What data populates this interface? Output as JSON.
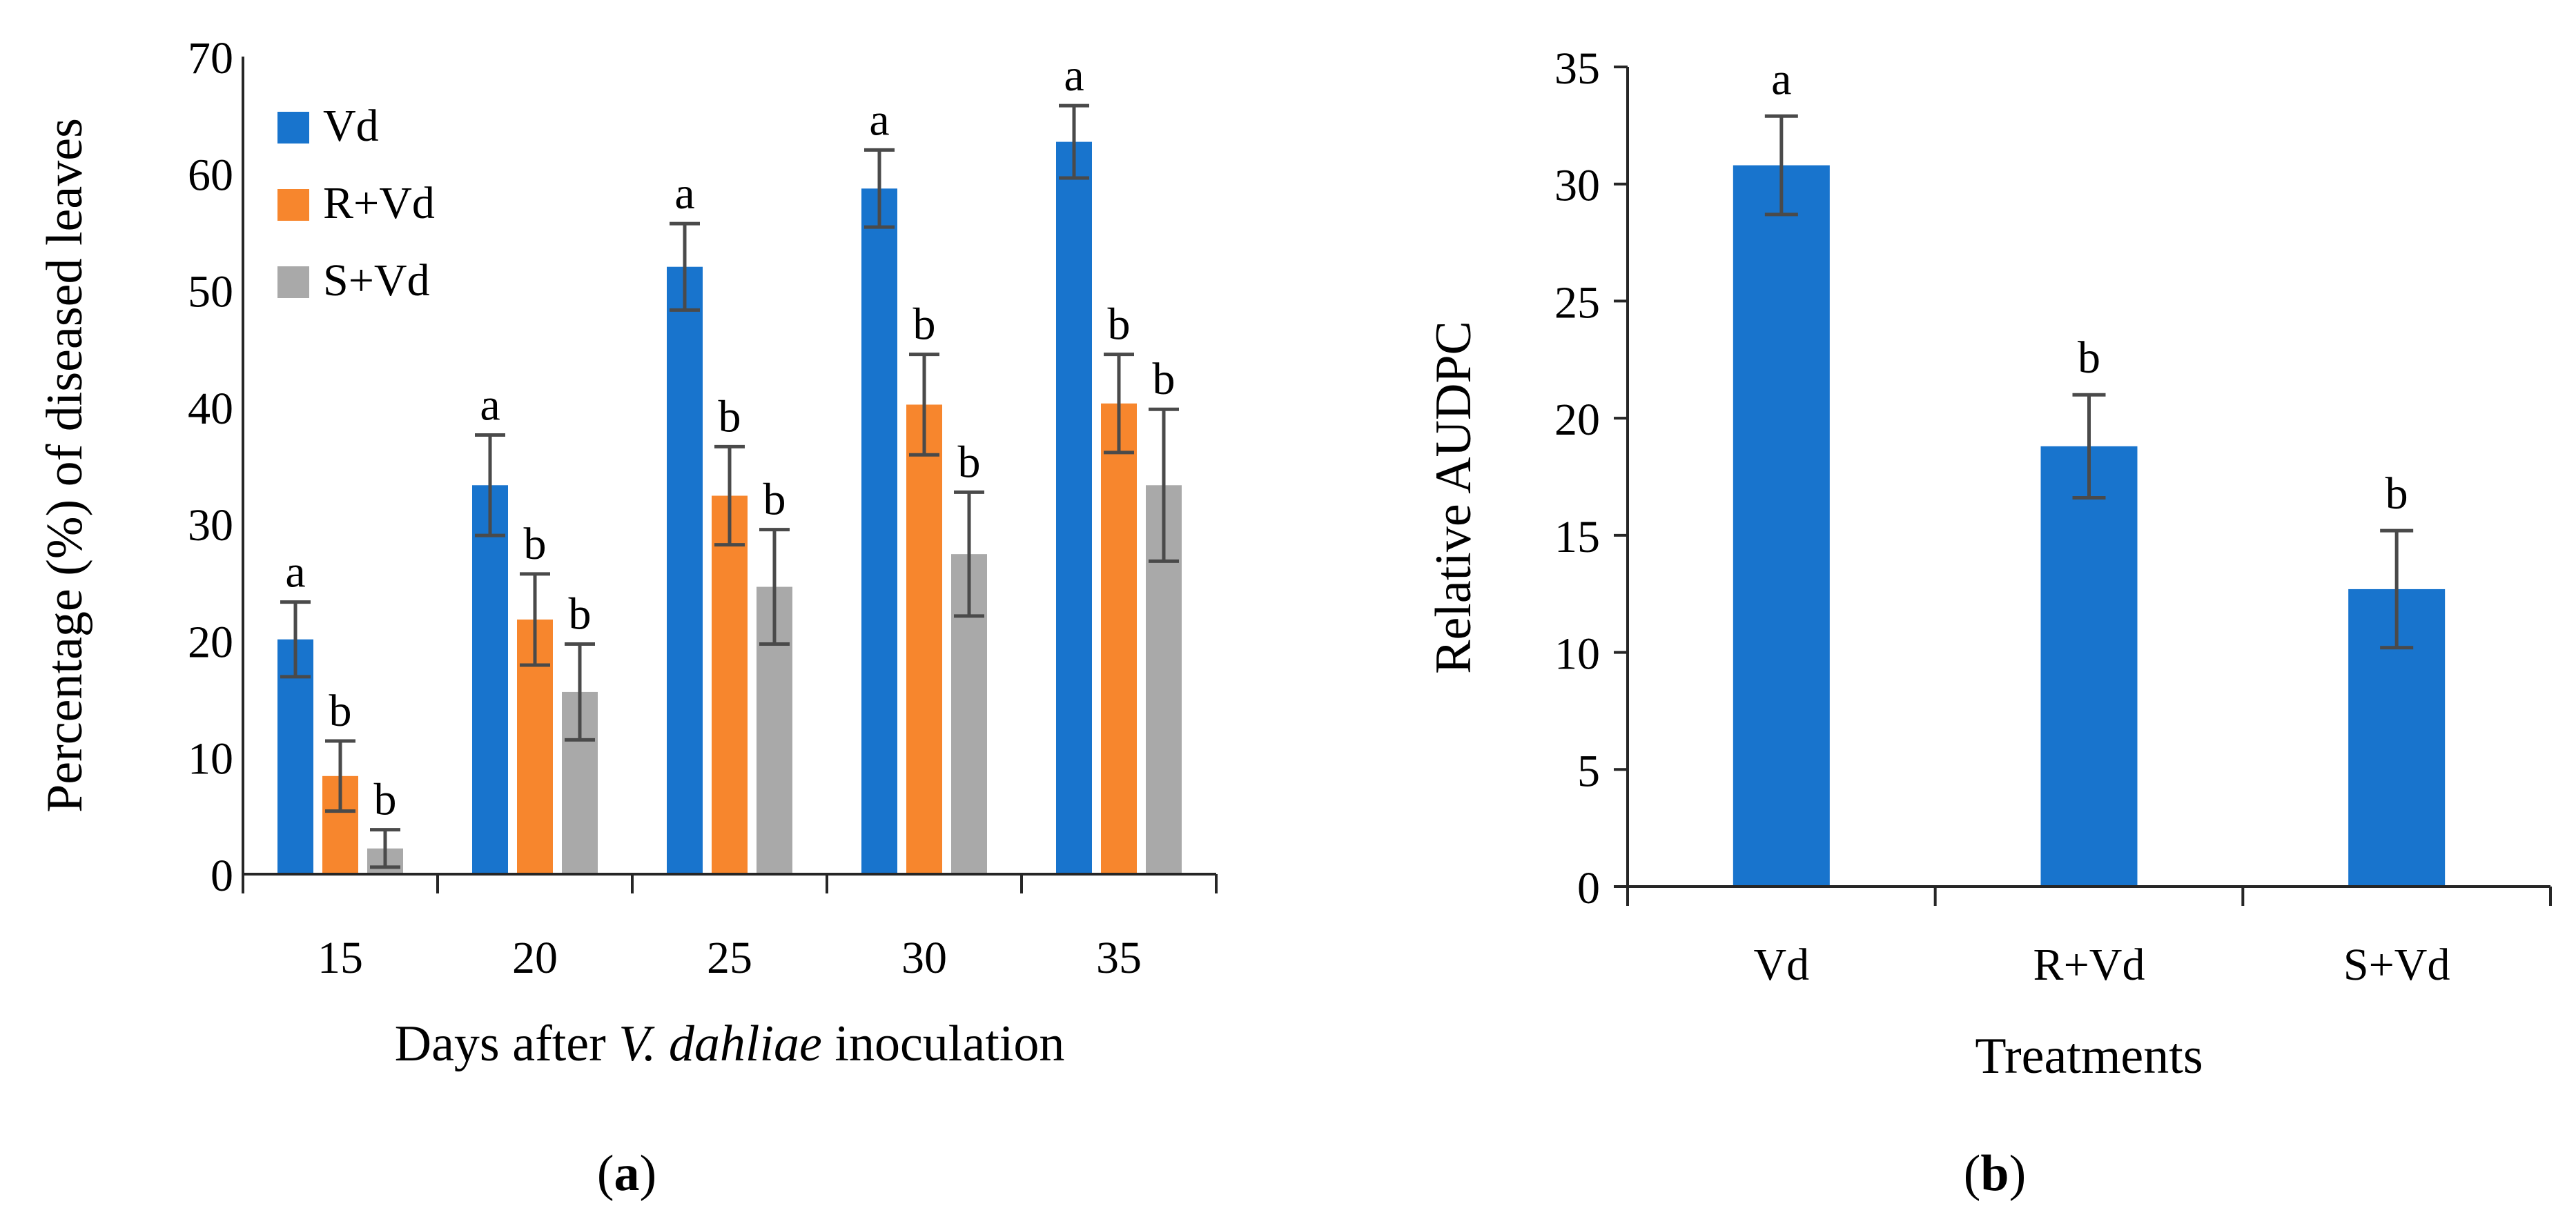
{
  "chart_data": [
    {
      "type": "bar",
      "title": "",
      "panel_label": "a",
      "categories": [
        "15",
        "20",
        "25",
        "30",
        "35"
      ],
      "xlabel_prefix": "Days after ",
      "xlabel_italic": "V. dahliae",
      "xlabel_suffix": " inoculation",
      "ylabel": "Percentage (%) of diseased leaves",
      "ylim": [
        0,
        70
      ],
      "yticks": [
        0,
        10,
        20,
        30,
        40,
        50,
        60,
        70
      ],
      "legend_position": "top-left",
      "series": [
        {
          "name": "Vd",
          "color": "#1874CD",
          "values": [
            20.1,
            33.3,
            52.0,
            58.7,
            62.7
          ],
          "errors": [
            3.2,
            4.3,
            3.7,
            3.3,
            3.1
          ],
          "letters": [
            "a",
            "a",
            "a",
            "a",
            "a"
          ]
        },
        {
          "name": "R+Vd",
          "color": "#F7862D",
          "values": [
            8.4,
            21.8,
            32.4,
            40.2,
            40.3
          ],
          "errors": [
            3.0,
            3.9,
            4.2,
            4.3,
            4.2
          ],
          "letters": [
            "b",
            "b",
            "b",
            "b",
            "b"
          ]
        },
        {
          "name": "S+Vd",
          "color": "#A9A9A9",
          "values": [
            2.2,
            15.6,
            24.6,
            27.4,
            33.3
          ],
          "errors": [
            1.6,
            4.1,
            4.9,
            5.3,
            6.5
          ],
          "letters": [
            "b",
            "b",
            "b",
            "b",
            "b"
          ]
        }
      ]
    },
    {
      "type": "bar",
      "title": "",
      "panel_label": "b",
      "categories": [
        "Vd",
        "R+Vd",
        "S+Vd"
      ],
      "xlabel": "Treatments",
      "ylabel": "Relative AUDPC",
      "ylim": [
        0,
        35
      ],
      "yticks": [
        0,
        5,
        10,
        15,
        20,
        25,
        30,
        35
      ],
      "series": [
        {
          "name": "Relative AUDPC",
          "color": "#1874CD",
          "values": [
            30.8,
            18.8,
            12.7
          ],
          "errors": [
            2.1,
            2.2,
            2.5
          ],
          "letters": [
            "a",
            "b",
            "b"
          ]
        }
      ]
    }
  ]
}
